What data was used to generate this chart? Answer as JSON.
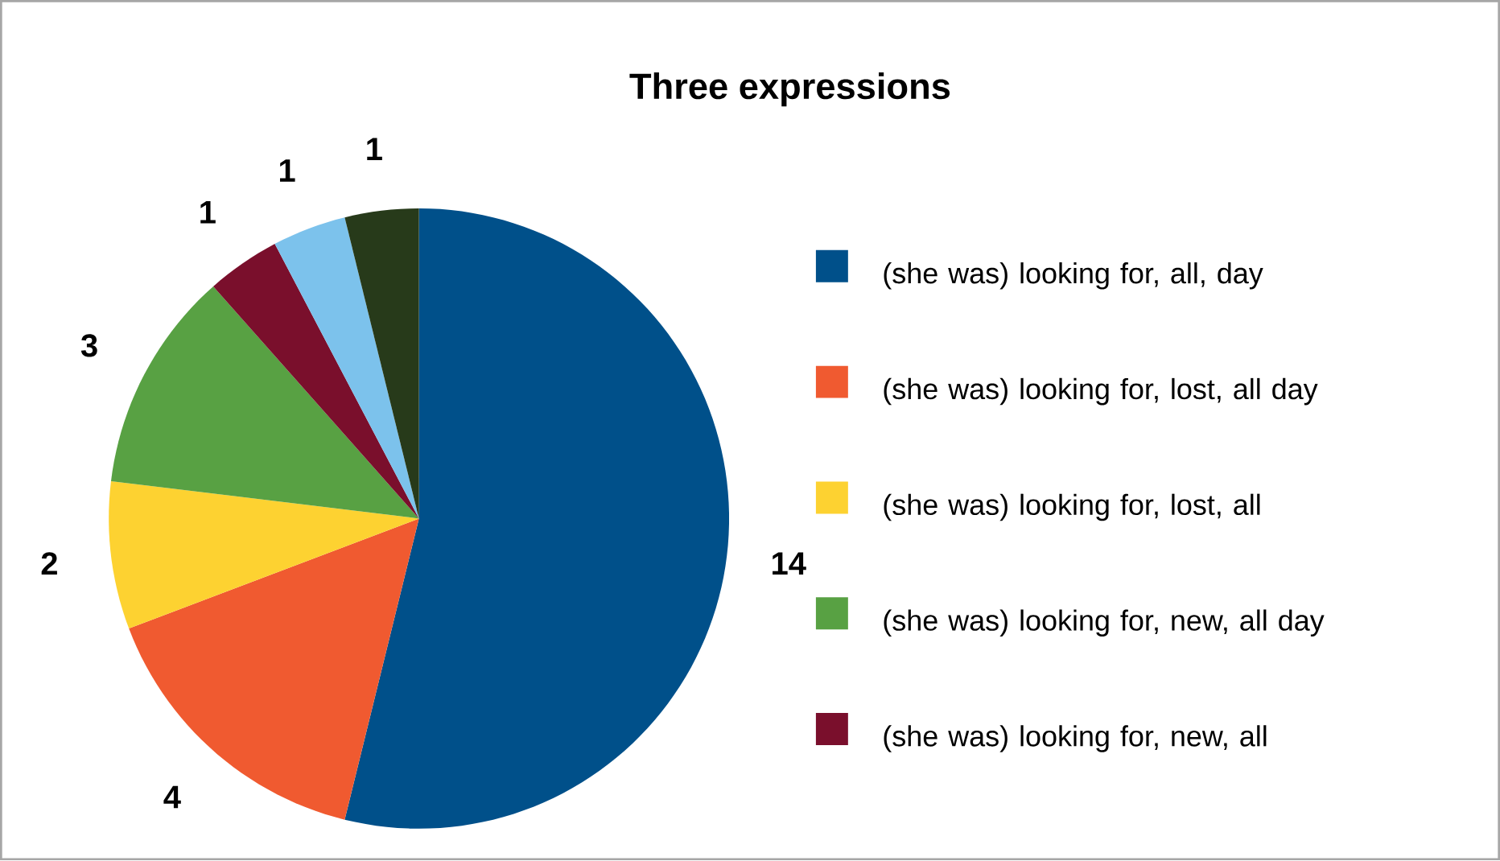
{
  "chart_data": {
    "type": "pie",
    "title": "Three expressions",
    "categories": [
      "(she was) looking for, all, day",
      "(she was) looking for, lost, all day",
      "(she was) looking for, lost, all",
      "(she was) looking for, new, all day",
      "(she was) looking for, new, all",
      null,
      null
    ],
    "values": [
      14,
      4,
      2,
      3,
      1,
      1,
      1
    ],
    "colors": [
      "#00508a",
      "#f05a30",
      "#fdd231",
      "#58a143",
      "#7a0f2c",
      "#7cc2ec",
      "#273a1a"
    ],
    "data_labels": true,
    "legend": "right"
  }
}
